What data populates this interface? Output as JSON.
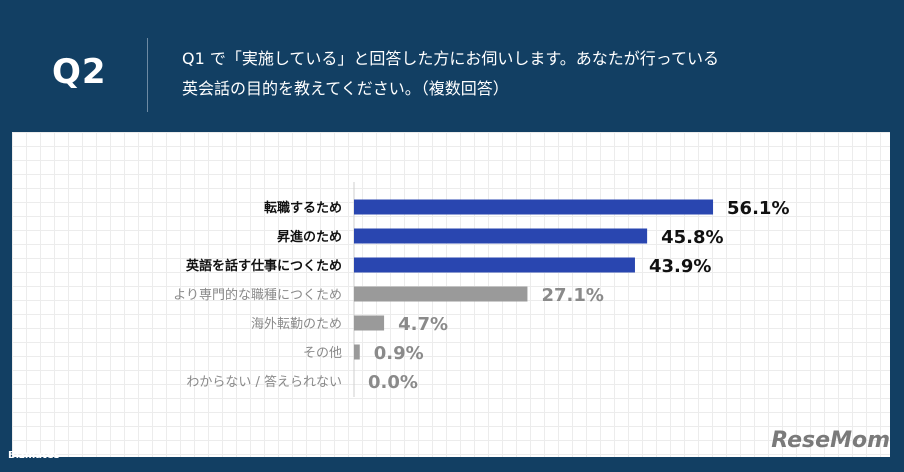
{
  "header": {
    "q_label": "Q2",
    "question_line1": "Q1 で「実施している」と回答した方にお伺いします。あなたが行っている",
    "question_line2": "英会話の目的を教えてください。（複数回答）"
  },
  "footer": {
    "logo": "Bizmates",
    "watermark": "ReseMom"
  },
  "colors": {
    "highlight": "#2946b0",
    "muted": "#9a9a9a",
    "header_bg": "#123f63"
  },
  "chart_data": {
    "type": "bar",
    "orientation": "horizontal",
    "categories": [
      "転職するため",
      "昇進のため",
      "英語を話す仕事につくため",
      "より専門的な職種につくため",
      "海外転勤のため",
      "その他",
      "わからない / 答えられない"
    ],
    "values": [
      56.1,
      45.8,
      43.9,
      27.1,
      4.7,
      0.9,
      0.0
    ],
    "value_labels": [
      "56.1%",
      "45.8%",
      "43.9%",
      "27.1%",
      "4.7%",
      "0.9%",
      "0.0%"
    ],
    "highlighted": [
      true,
      true,
      true,
      false,
      false,
      false,
      false
    ],
    "unit": "%",
    "xlim": [
      0,
      100
    ],
    "grid": true,
    "legend": "none"
  }
}
